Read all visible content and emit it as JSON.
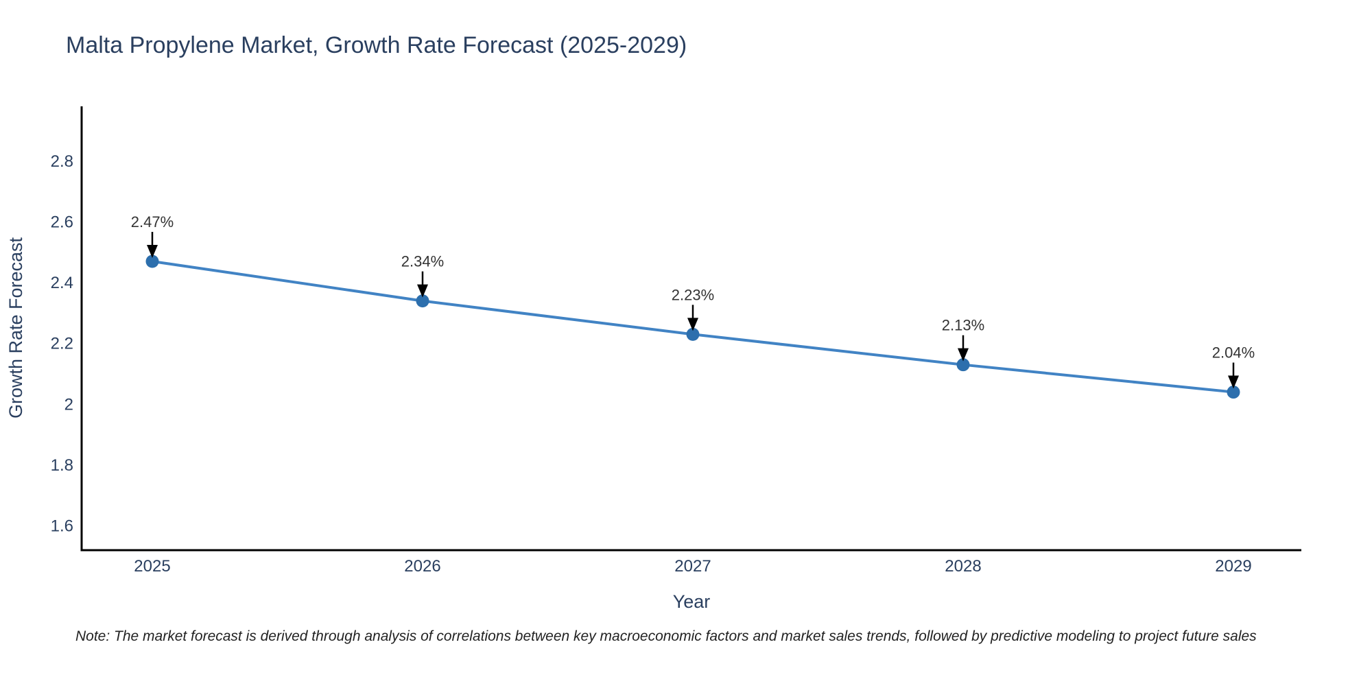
{
  "title": "Malta Propylene Market, Growth Rate Forecast (2025-2029)",
  "note": "Note: The market forecast is derived through analysis of correlations between key macroeconomic factors and market sales trends, followed by predictive modeling to project future sales",
  "chart_data": {
    "type": "line",
    "title": "Malta Propylene Market, Growth Rate Forecast (2025-2029)",
    "xlabel": "Year",
    "ylabel": "Growth Rate Forecast",
    "x": [
      2025,
      2026,
      2027,
      2028,
      2029
    ],
    "y": [
      2.47,
      2.34,
      2.23,
      2.13,
      2.04
    ],
    "point_labels": [
      "2.47%",
      "2.34%",
      "2.23%",
      "2.13%",
      "2.04%"
    ],
    "xtick_labels": [
      "2025",
      "2026",
      "2027",
      "2028",
      "2029"
    ],
    "ytick_values": [
      2.8,
      2.6,
      2.4,
      2.2,
      2.0,
      1.8,
      1.6
    ],
    "ytick_labels": [
      "2.8",
      "2.6",
      "2.4",
      "2.2",
      "2",
      "1.8",
      "1.6"
    ],
    "ylim": [
      1.52,
      2.98
    ],
    "grid": false,
    "legend": false,
    "annotations_have_arrows": true,
    "colors": {
      "line": "#4183c4",
      "marker": "#2d6fad",
      "axis": "#000000",
      "arrow": "#000000",
      "axis_text": "#2a3f5f",
      "annotation_text": "#333333",
      "title_text": "#2a3f5f"
    }
  }
}
